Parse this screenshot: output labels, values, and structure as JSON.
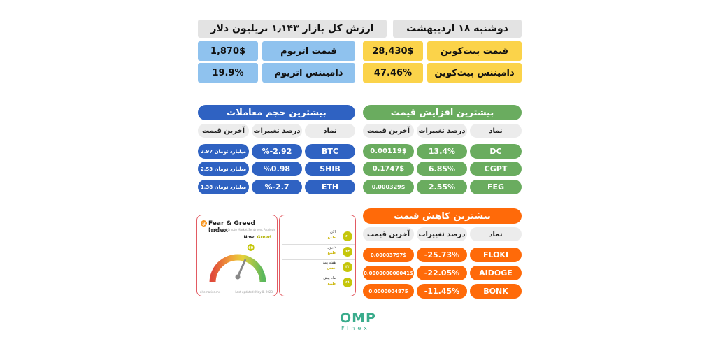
{
  "header": {
    "date": "دوشنبه ۱۸ اردیبهشت",
    "market_cap": "ارزش کل بازار ۱٫۱۴۳ تریلیون دلار"
  },
  "stats": {
    "btc_price_label": "قیمت بیت‌کوین",
    "btc_price_value": "28,430$",
    "btc_dom_label": "دامیننس بیت‌کوین",
    "btc_dom_value": "47.46%",
    "eth_price_label": "قیمت اتریوم",
    "eth_price_value": "1,870$",
    "eth_dom_label": "دامیننس اتریوم",
    "eth_dom_value": "19.9%"
  },
  "columns": {
    "symbol": "نماد",
    "change": "درصد تغییرات",
    "last_price": "آخرین قیمت"
  },
  "gainers": {
    "title": "بیشترین افزایش قیمت",
    "rows": [
      {
        "symbol": "DC",
        "change": "13.4%",
        "price": "0.00119$"
      },
      {
        "symbol": "CGPT",
        "change": "6.85%",
        "price": "0.1747$"
      },
      {
        "symbol": "FEG",
        "change": "2.55%",
        "price": "0.000329$"
      }
    ]
  },
  "volume": {
    "title": "بیشترین حجم معاملات",
    "rows": [
      {
        "symbol": "BTC",
        "change": "%-2.92",
        "price": "2.97 میلیارد تومان"
      },
      {
        "symbol": "SHIB",
        "change": "%0.98",
        "price": "2.53 میلیارد تومان"
      },
      {
        "symbol": "ETH",
        "change": "%-2.7",
        "price": "1.38 میلیارد تومان"
      }
    ]
  },
  "losers": {
    "title": "بیشترین کاهش قیمت",
    "rows": [
      {
        "symbol": "FLOKI",
        "change": "-25.73%",
        "price": "0.00003797$"
      },
      {
        "symbol": "AIDOGE",
        "change": "-22.05%",
        "price": "0.000000000041$"
      },
      {
        "symbol": "BONK",
        "change": "-11.45%",
        "price": "0.0000004875"
      }
    ]
  },
  "fear_greed": {
    "title": "Fear & Greed Index",
    "subtitle": "Multifactorial Crypto Market Sentiment Analysis",
    "now_label": "Now:",
    "now_status": "Greed",
    "value": 60,
    "source": "alternative.me",
    "updated": "Last updated: May 8, 2023",
    "history": [
      {
        "label": "الان",
        "status": "طمع",
        "value": "۶۰"
      },
      {
        "label": "دیروز",
        "status": "طمع",
        "value": "۶۴"
      },
      {
        "label": "هفته پیش",
        "status": "خنثی",
        "value": "۴۳"
      },
      {
        "label": "ماه پیش",
        "status": "طمع",
        "value": "۶۱"
      }
    ]
  },
  "logo": {
    "main": "OMP",
    "sub": "Finex"
  },
  "colors": {
    "gainers": "#6aac5f",
    "volume": "#2f62c2",
    "losers": "#ff6a09",
    "yellow": "#fbd34a",
    "blue": "#8fc2ee",
    "gray": "#e3e3e3"
  }
}
